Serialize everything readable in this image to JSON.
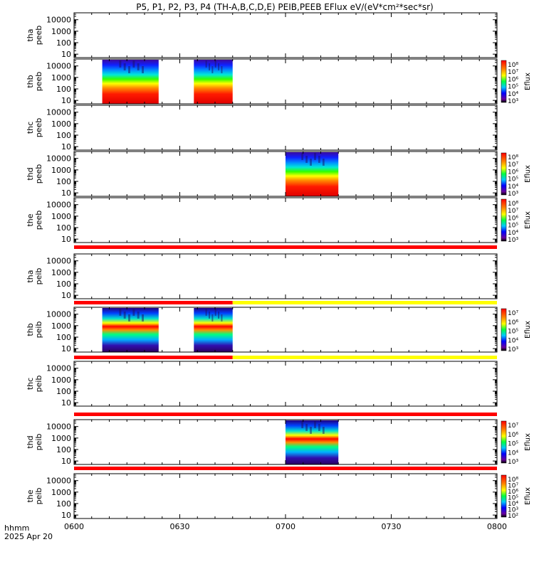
{
  "title": "P5, P1, P2, P3, P4 (TH-A,B,C,D,E) PEIB,PEEB EFlux eV/(eV*cm²*sec*sr)",
  "footer": {
    "xlabel_line1": "hhmm",
    "xlabel_line2": "2025 Apr 20"
  },
  "chart_data": {
    "type": "heatmap",
    "title": "P5, P1, P2, P3, P4 (TH-A,B,C,D,E) PEIB,PEEB EFlux eV/(eV*cm²*sec*sr)",
    "x_ticks": [
      "0600",
      "0630",
      "0700",
      "0730",
      "0800"
    ],
    "x_range_minutes": [
      0,
      120
    ],
    "y_scale": "log",
    "y_ticks": [
      "10",
      "100",
      "1000",
      "10000"
    ],
    "y_range": [
      5,
      40000
    ],
    "colorbar_label": "Eflux",
    "colors": {
      "flag_red": "#ff0000",
      "flag_yellow": "#ffff00"
    },
    "panels": [
      {
        "id": "tha_peeb",
        "ylabel": [
          "tha",
          "peeb"
        ],
        "blocks": []
      },
      {
        "id": "thb_peeb",
        "ylabel": [
          "thb",
          "peeb"
        ],
        "blocks": [
          {
            "start_min": 8,
            "end_min": 24,
            "profile": "electron"
          },
          {
            "start_min": 34,
            "end_min": 45,
            "profile": "electron"
          }
        ],
        "colorbar": [
          "10⁸",
          "10⁷",
          "10⁶",
          "10⁵",
          "10⁴",
          "10³"
        ]
      },
      {
        "id": "thc_peeb",
        "ylabel": [
          "thc",
          "peeb"
        ],
        "blocks": []
      },
      {
        "id": "thd_peeb",
        "ylabel": [
          "thd",
          "peeb"
        ],
        "blocks": [
          {
            "start_min": 60,
            "end_min": 75,
            "profile": "electron"
          }
        ],
        "colorbar": [
          "10⁸",
          "10⁷",
          "10⁶",
          "10⁵",
          "10⁴",
          "10³"
        ]
      },
      {
        "id": "the_peeb",
        "ylabel": [
          "the",
          "peeb"
        ],
        "blocks": [],
        "colorbar": [
          "10⁸",
          "10⁷",
          "10⁶",
          "10⁵",
          "10⁴",
          "10³"
        ]
      },
      {
        "id": "tha_peib",
        "ylabel": [
          "tha",
          "peib"
        ],
        "blocks": []
      },
      {
        "id": "thb_peib",
        "ylabel": [
          "thb",
          "peib"
        ],
        "blocks": [
          {
            "start_min": 8,
            "end_min": 24,
            "profile": "ion"
          },
          {
            "start_min": 34,
            "end_min": 45,
            "profile": "ion"
          }
        ],
        "colorbar": [
          "10⁷",
          "10⁶",
          "10⁵",
          "10⁴",
          "10³"
        ]
      },
      {
        "id": "thc_peib",
        "ylabel": [
          "thc",
          "peib"
        ],
        "blocks": []
      },
      {
        "id": "thd_peib",
        "ylabel": [
          "thd",
          "peib"
        ],
        "blocks": [
          {
            "start_min": 60,
            "end_min": 75,
            "profile": "ion"
          }
        ],
        "colorbar": [
          "10⁷",
          "10⁶",
          "10⁵",
          "10⁴",
          "10³"
        ]
      },
      {
        "id": "the_peib",
        "ylabel": [
          "the",
          "peib"
        ],
        "blocks": [],
        "colorbar": [
          "10⁸",
          "10⁷",
          "10⁶",
          "10⁵",
          "10⁴",
          "10³",
          "10²"
        ]
      }
    ],
    "flag_bars": [
      {
        "after_panel": 4,
        "segments": [
          {
            "start_min": 0,
            "end_min": 120,
            "color": "red"
          }
        ]
      },
      {
        "after_panel": 5,
        "segments": [
          {
            "start_min": 0,
            "end_min": 45,
            "color": "red"
          },
          {
            "start_min": 45,
            "end_min": 120,
            "color": "yellow"
          }
        ]
      },
      {
        "after_panel": 6,
        "segments": [
          {
            "start_min": 0,
            "end_min": 45,
            "color": "red"
          },
          {
            "start_min": 45,
            "end_min": 120,
            "color": "yellow"
          }
        ]
      },
      {
        "after_panel": 7,
        "segments": [
          {
            "start_min": 0,
            "end_min": 120,
            "color": "red"
          }
        ]
      },
      {
        "after_panel": 8,
        "segments": [
          {
            "start_min": 0,
            "end_min": 120,
            "color": "red"
          }
        ]
      }
    ]
  }
}
